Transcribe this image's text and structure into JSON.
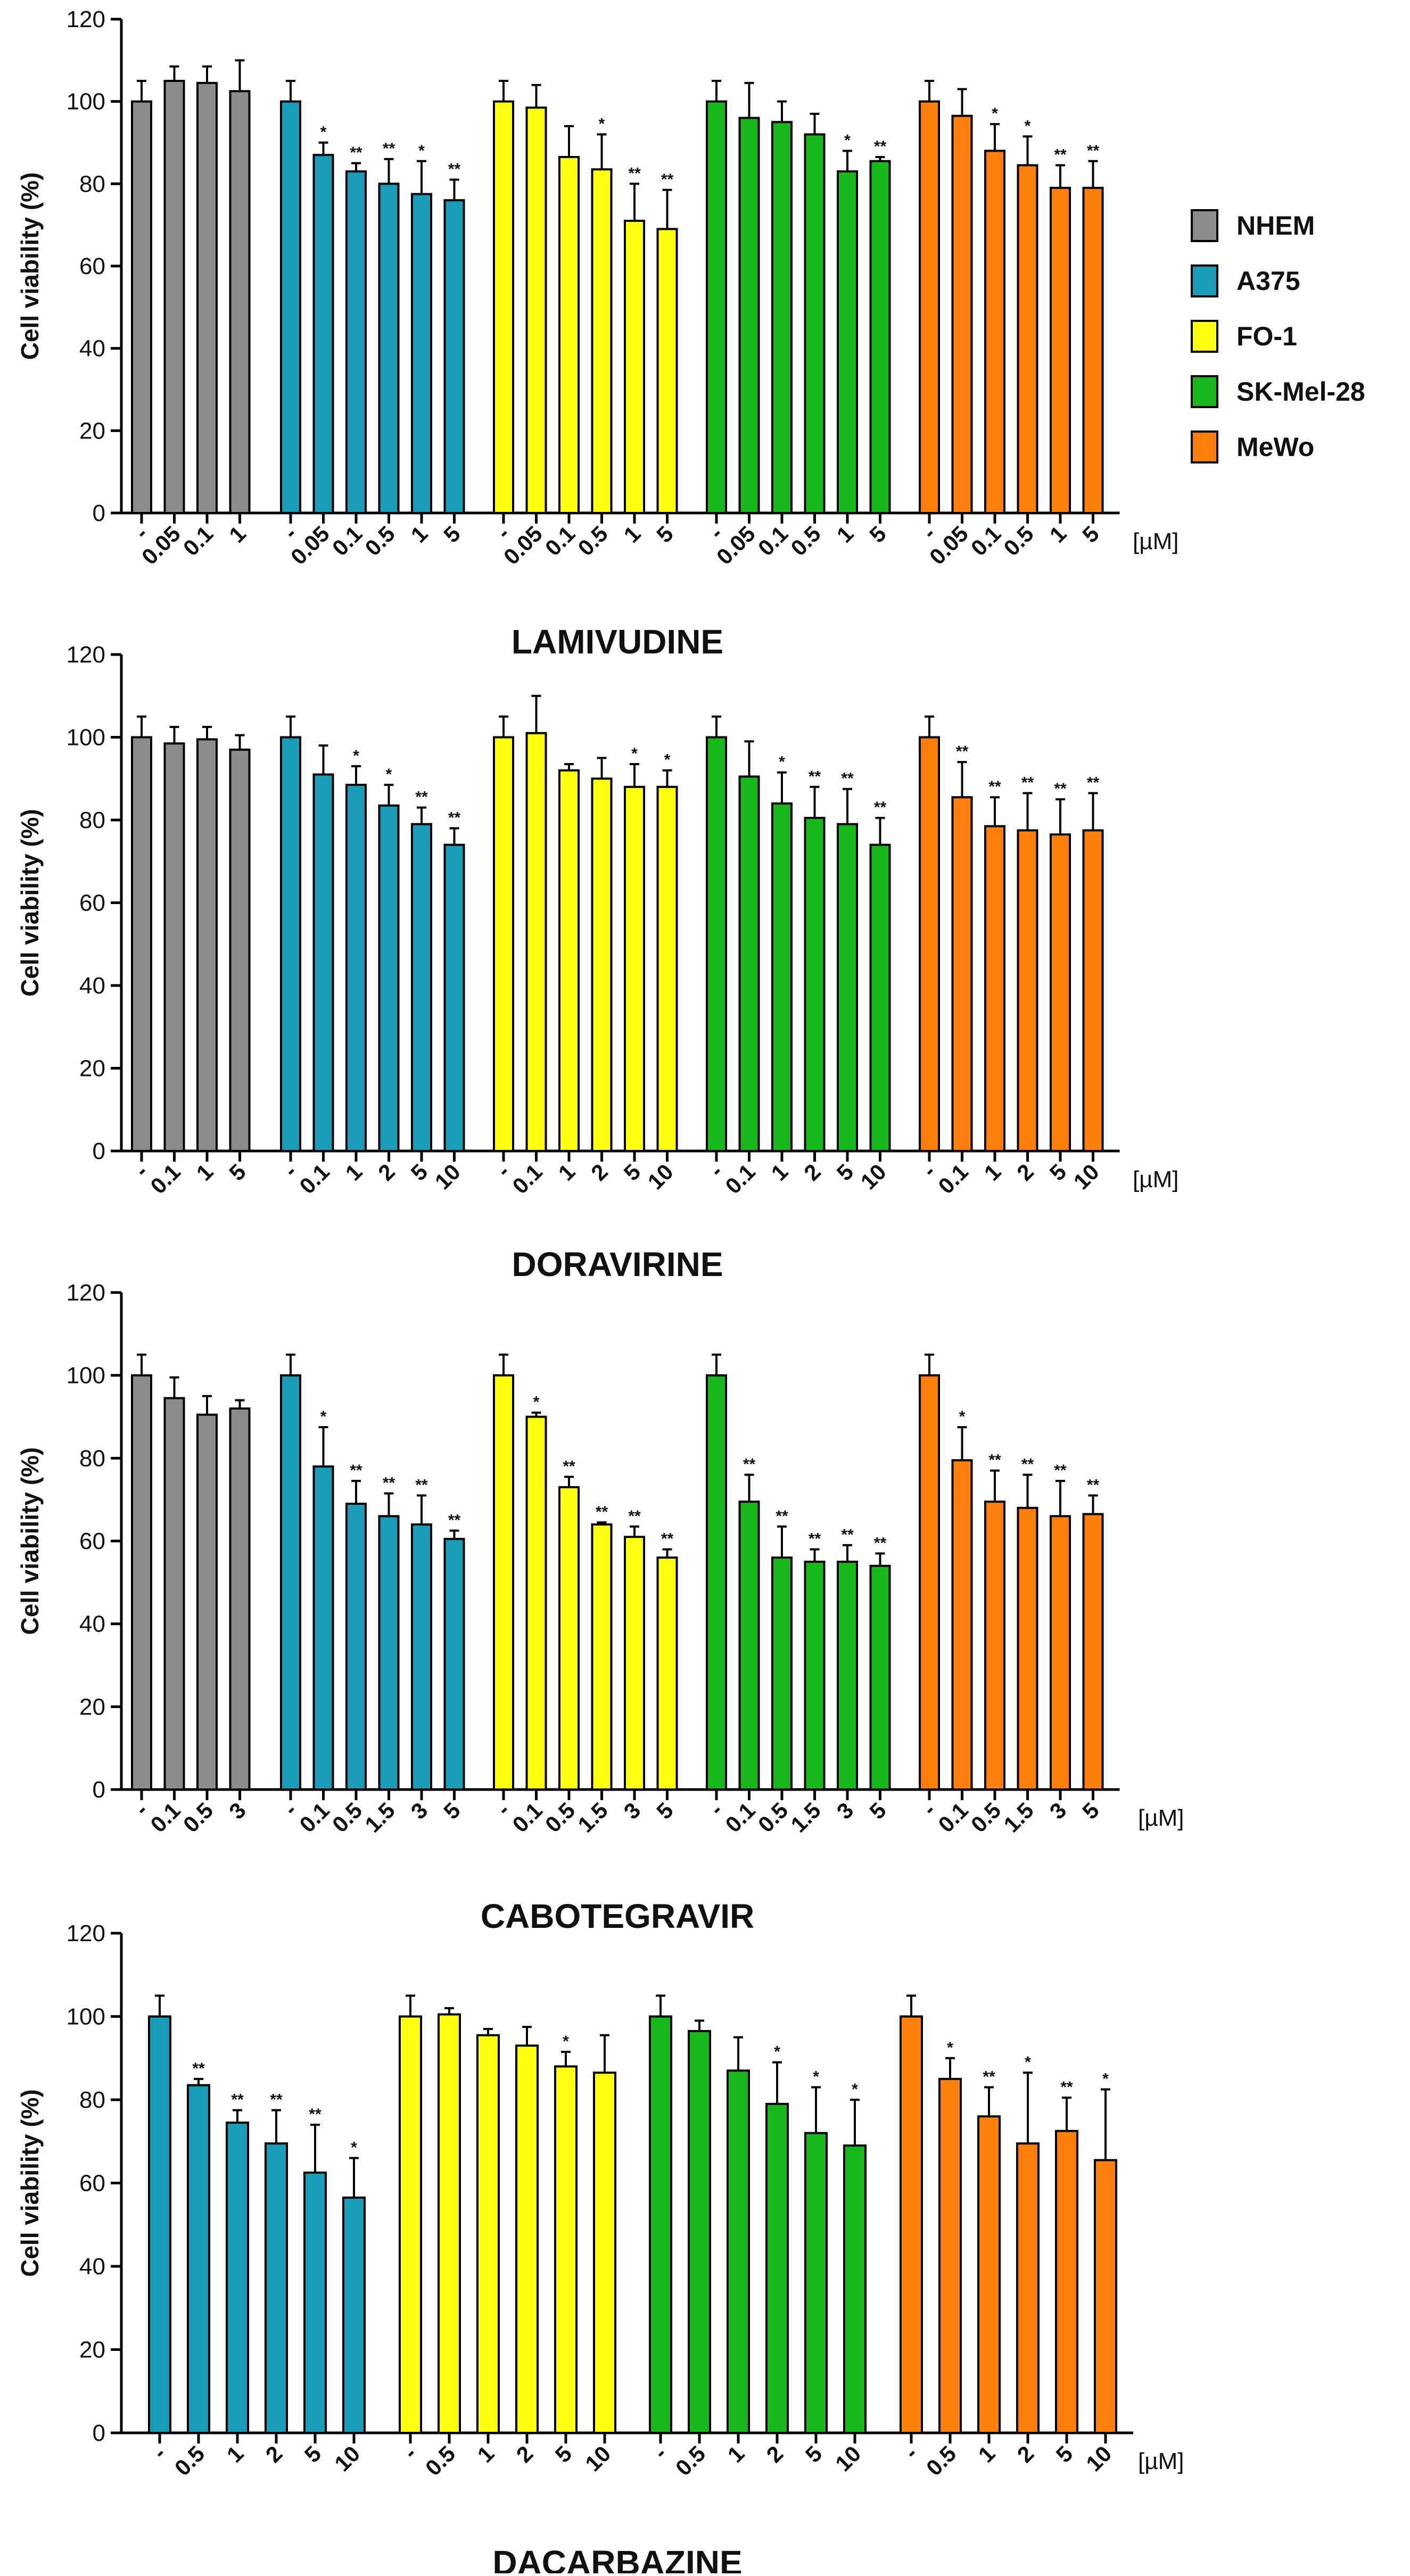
{
  "colors": {
    "NHEM": "#8c8c8c",
    "A375": "#1a9bb8",
    "FO-1": "#ffff10",
    "SK-Mel-28": "#19b81a",
    "MeWo": "#ff7f0e"
  },
  "legend": [
    "NHEM",
    "A375",
    "FO-1",
    "SK-Mel-28",
    "MeWo"
  ],
  "chart_data": [
    {
      "type": "bar",
      "title": "LAMIVUDINE",
      "ylabel": "Cell viability (%)",
      "ylim": [
        0,
        120
      ],
      "yticks": [
        "0",
        "20",
        "40",
        "60",
        "80",
        "100",
        "120"
      ],
      "unit_label": "[µM]",
      "groups": [
        {
          "cell_line": "NHEM",
          "categories": [
            "-",
            "0.05",
            "0.1",
            "1"
          ],
          "values": [
            100,
            105,
            104.5,
            102.5
          ],
          "errors": [
            5,
            3.5,
            4,
            7.5
          ],
          "sig": [
            "",
            "",
            "",
            ""
          ]
        },
        {
          "cell_line": "A375",
          "categories": [
            "-",
            "0.05",
            "0.1",
            "0.5",
            "1",
            "5"
          ],
          "values": [
            100,
            87,
            83,
            80,
            77.5,
            76
          ],
          "errors": [
            5,
            3,
            2,
            6,
            8,
            5
          ],
          "sig": [
            "",
            "*",
            "**",
            "**",
            "*",
            "**"
          ]
        },
        {
          "cell_line": "FO-1",
          "categories": [
            "-",
            "0.05",
            "0.1",
            "0.5",
            "1",
            "5"
          ],
          "values": [
            100,
            98.5,
            86.5,
            83.5,
            71,
            69
          ],
          "errors": [
            5,
            5.5,
            7.5,
            8.5,
            9,
            9.5
          ],
          "sig": [
            "",
            "",
            "",
            "*",
            "**",
            "**"
          ]
        },
        {
          "cell_line": "SK-Mel-28",
          "categories": [
            "-",
            "0.05",
            "0.1",
            "0.5",
            "1",
            "5"
          ],
          "values": [
            100,
            96,
            95,
            92,
            83,
            85.5
          ],
          "errors": [
            5,
            8.5,
            5,
            5,
            5,
            1
          ],
          "sig": [
            "",
            "",
            "",
            "",
            "*",
            "**"
          ]
        },
        {
          "cell_line": "MeWo",
          "categories": [
            "-",
            "0.05",
            "0.1",
            "0.5",
            "1",
            "5"
          ],
          "values": [
            100,
            96.5,
            88,
            84.5,
            79,
            79
          ],
          "errors": [
            5,
            6.5,
            6.5,
            7,
            5.5,
            6.5
          ],
          "sig": [
            "",
            "",
            "*",
            "*",
            "**",
            "**"
          ]
        }
      ]
    },
    {
      "type": "bar",
      "title": "DORAVIRINE",
      "ylabel": "Cell viability (%)",
      "ylim": [
        0,
        120
      ],
      "yticks": [
        "0",
        "20",
        "40",
        "60",
        "80",
        "100",
        "120"
      ],
      "unit_label": "[µM]",
      "groups": [
        {
          "cell_line": "NHEM",
          "categories": [
            "-",
            "0.1",
            "1",
            "5"
          ],
          "values": [
            100,
            98.5,
            99.5,
            97
          ],
          "errors": [
            5,
            4,
            3,
            3.5
          ],
          "sig": [
            "",
            "",
            "",
            ""
          ]
        },
        {
          "cell_line": "A375",
          "categories": [
            "-",
            "0.1",
            "1",
            "2",
            "5",
            "10"
          ],
          "values": [
            100,
            91,
            88.5,
            83.5,
            79,
            74
          ],
          "errors": [
            5,
            7,
            4.5,
            5,
            4,
            4
          ],
          "sig": [
            "",
            "",
            "*",
            "*",
            "**",
            "**"
          ]
        },
        {
          "cell_line": "FO-1",
          "categories": [
            "-",
            "0.1",
            "1",
            "2",
            "5",
            "10"
          ],
          "values": [
            100,
            101,
            92,
            90,
            88,
            88
          ],
          "errors": [
            5,
            9,
            1.5,
            5,
            5.5,
            4
          ],
          "sig": [
            "",
            "",
            "",
            "",
            "*",
            "*"
          ]
        },
        {
          "cell_line": "SK-Mel-28",
          "categories": [
            "-",
            "0.1",
            "1",
            "2",
            "5",
            "10"
          ],
          "values": [
            100,
            90.5,
            84,
            80.5,
            79,
            74
          ],
          "errors": [
            5,
            8.5,
            7.5,
            7.5,
            8.5,
            6.5
          ],
          "sig": [
            "",
            "",
            "*",
            "**",
            "**",
            "**"
          ]
        },
        {
          "cell_line": "MeWo",
          "categories": [
            "-",
            "0.1",
            "1",
            "2",
            "5",
            "10"
          ],
          "values": [
            100,
            85.5,
            78.5,
            77.5,
            76.5,
            77.5
          ],
          "errors": [
            5,
            8.5,
            7,
            9,
            8.5,
            9
          ],
          "sig": [
            "",
            "**",
            "**",
            "**",
            "**",
            "**"
          ]
        }
      ]
    },
    {
      "type": "bar",
      "title": "CABOTEGRAVIR",
      "ylabel": "Cell viability (%)",
      "ylim": [
        0,
        120
      ],
      "yticks": [
        "0",
        "20",
        "40",
        "60",
        "80",
        "100",
        "120"
      ],
      "unit_label": "[µM]",
      "groups": [
        {
          "cell_line": "NHEM",
          "categories": [
            "-",
            "0.1",
            "0.5",
            "3"
          ],
          "values": [
            100,
            94.5,
            90.5,
            92
          ],
          "errors": [
            5,
            5,
            4.5,
            2
          ],
          "sig": [
            "",
            "",
            "",
            ""
          ]
        },
        {
          "cell_line": "A375",
          "categories": [
            "-",
            "0.1",
            "0.5",
            "1.5",
            "3",
            "5"
          ],
          "values": [
            100,
            78,
            69,
            66,
            64,
            60.5
          ],
          "errors": [
            5,
            9.5,
            5.5,
            5.5,
            7,
            2
          ],
          "sig": [
            "",
            "*",
            "**",
            "**",
            "**",
            "**"
          ]
        },
        {
          "cell_line": "FO-1",
          "categories": [
            "-",
            "0.1",
            "0.5",
            "1.5",
            "3",
            "5"
          ],
          "values": [
            100,
            90,
            73,
            64,
            61,
            56
          ],
          "errors": [
            5,
            1,
            2.5,
            0.5,
            2.5,
            2
          ],
          "sig": [
            "",
            "*",
            "**",
            "**",
            "**",
            "**"
          ]
        },
        {
          "cell_line": "SK-Mel-28",
          "categories": [
            "-",
            "0.1",
            "0.5",
            "1.5",
            "3",
            "5"
          ],
          "values": [
            100,
            69.5,
            56,
            55,
            55,
            54
          ],
          "errors": [
            5,
            6.5,
            7.5,
            3,
            4,
            3
          ],
          "sig": [
            "",
            "**",
            "**",
            "**",
            "**",
            "**"
          ]
        },
        {
          "cell_line": "MeWo",
          "categories": [
            "-",
            "0.1",
            "0.5",
            "1.5",
            "3",
            "5"
          ],
          "values": [
            100,
            79.5,
            69.5,
            68,
            66,
            66.5
          ],
          "errors": [
            5,
            8,
            7.5,
            8,
            8.5,
            4.5
          ],
          "sig": [
            "",
            "*",
            "**",
            "**",
            "**",
            "**"
          ]
        }
      ]
    },
    {
      "type": "bar",
      "title": "DACARBAZINE",
      "ylabel": "Cell viability (%)",
      "ylim": [
        0,
        120
      ],
      "yticks": [
        "0",
        "20",
        "40",
        "60",
        "80",
        "100",
        "120"
      ],
      "unit_label": "[µM]",
      "groups": [
        {
          "cell_line": "A375",
          "categories": [
            "-",
            "0.5",
            "1",
            "2",
            "5",
            "10"
          ],
          "values": [
            100,
            83.5,
            74.5,
            69.5,
            62.5,
            56.5
          ],
          "errors": [
            5,
            1.5,
            3,
            8,
            11.5,
            9.5
          ],
          "sig": [
            "",
            "**",
            "**",
            "**",
            "**",
            "*"
          ]
        },
        {
          "cell_line": "FO-1",
          "categories": [
            "-",
            "0.5",
            "1",
            "2",
            "5",
            "10"
          ],
          "values": [
            100,
            100.5,
            95.5,
            93,
            88,
            86.5
          ],
          "errors": [
            5,
            1.5,
            1.5,
            4.5,
            3.5,
            9
          ],
          "sig": [
            "",
            "",
            "",
            "",
            "*",
            ""
          ]
        },
        {
          "cell_line": "SK-Mel-28",
          "categories": [
            "-",
            "0.5",
            "1",
            "2",
            "5",
            "10"
          ],
          "values": [
            100,
            96.5,
            87,
            79,
            72,
            69
          ],
          "errors": [
            5,
            2.5,
            8,
            10,
            11,
            11
          ],
          "sig": [
            "",
            "",
            "",
            "*",
            "*",
            "*"
          ]
        },
        {
          "cell_line": "MeWo",
          "categories": [
            "-",
            "0.5",
            "1",
            "2",
            "5",
            "10"
          ],
          "values": [
            100,
            85,
            76,
            69.5,
            72.5,
            65.5
          ],
          "errors": [
            5,
            5,
            7,
            17,
            8,
            17
          ],
          "sig": [
            "",
            "*",
            "**",
            "*",
            "**",
            "*"
          ]
        }
      ]
    }
  ]
}
